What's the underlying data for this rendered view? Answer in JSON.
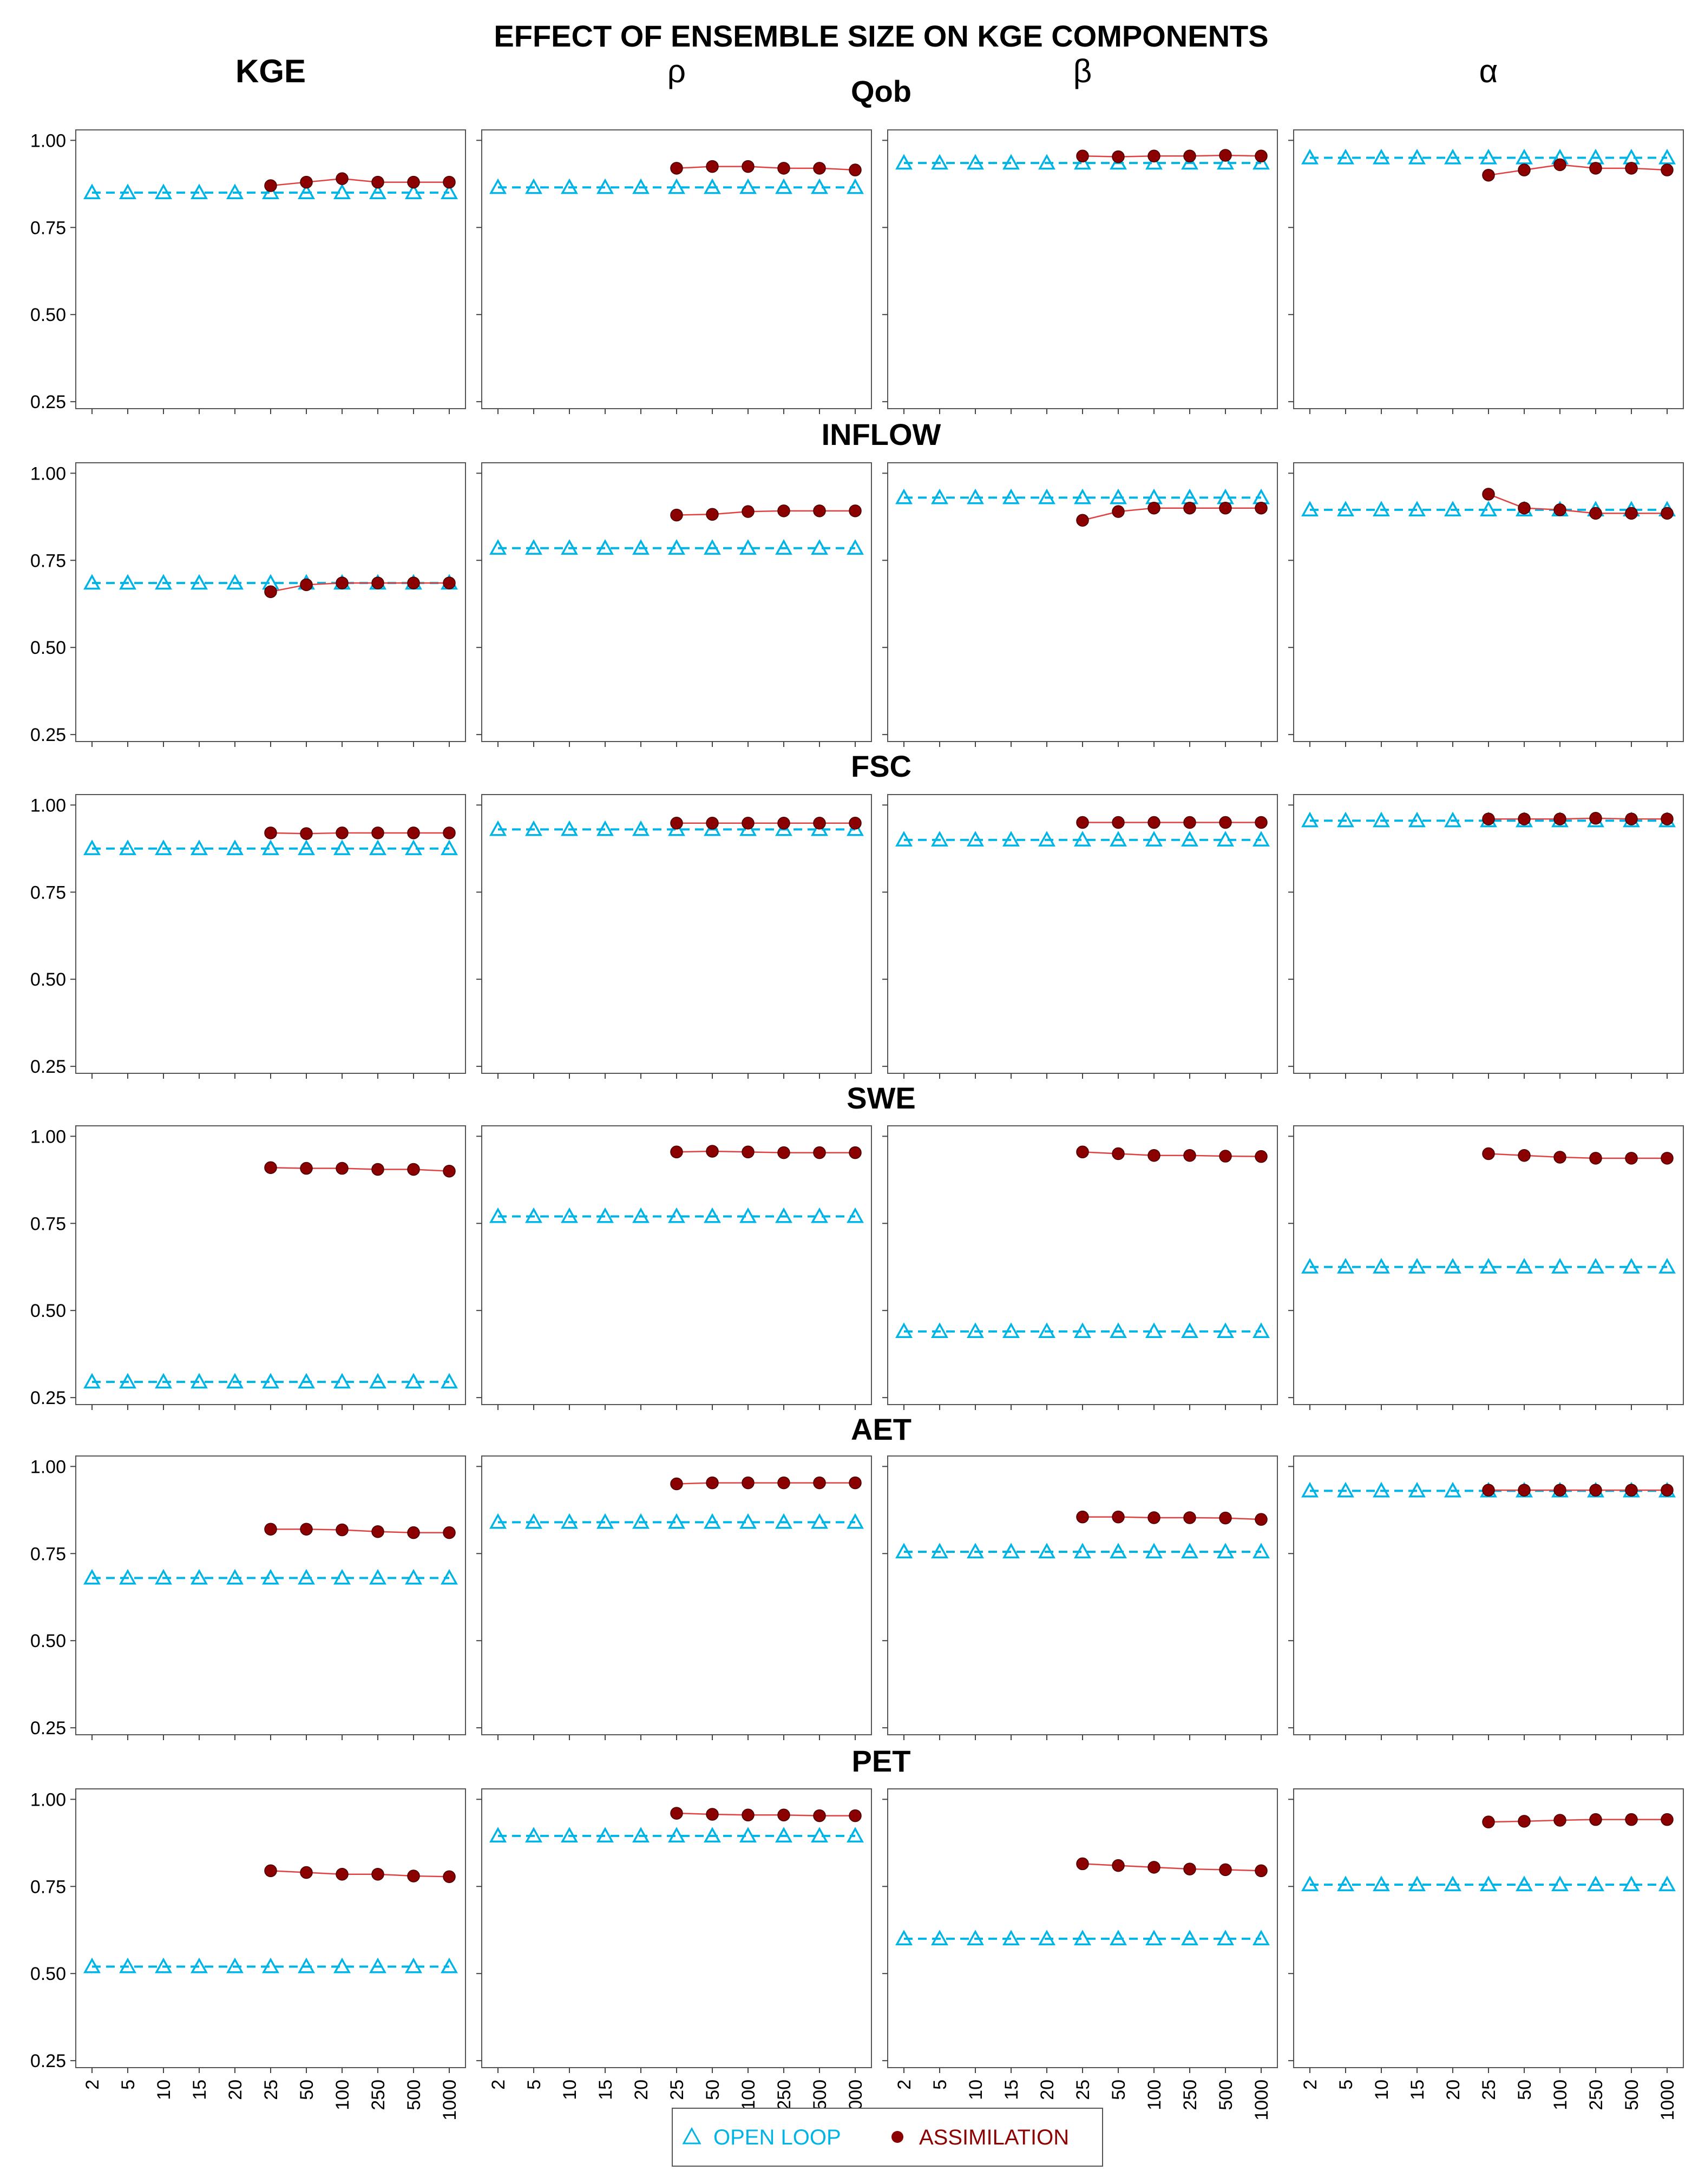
{
  "chart_data": {
    "type": "line",
    "title": "EFFECT OF ENSEMBLE SIZE ON KGE COMPONENTS",
    "columns": [
      "KGE",
      "ρ",
      "β",
      "α"
    ],
    "rows": [
      "Qob",
      "INFLOW",
      "FSC",
      "SWE",
      "AET",
      "PET"
    ],
    "x_categories": [
      "2",
      "5",
      "10",
      "15",
      "20",
      "25",
      "50",
      "100",
      "250",
      "500",
      "1000"
    ],
    "assimilation_start_index": 5,
    "y_ticks": [
      1.0,
      0.75,
      0.5,
      0.25
    ],
    "y_tick_labels": [
      "1.00",
      "0.75",
      "0.50",
      "0.25"
    ],
    "ylim": [
      0.23,
      1.03
    ],
    "grid": false,
    "colors": {
      "open_loop": "#00b4e6",
      "assimilation": "#8b0000",
      "assimilation_line": "#e04040"
    },
    "legend": {
      "position": "bottom-center",
      "entries": [
        {
          "label": "OPEN LOOP",
          "marker": "triangle-open",
          "color": "#00b4e6"
        },
        {
          "label": "ASSIMILATION",
          "marker": "circle-filled",
          "color": "#8b0000"
        }
      ]
    },
    "panels": [
      {
        "row": "Qob",
        "column": "KGE",
        "open_loop": 0.85,
        "assimilation": [
          0.87,
          0.88,
          0.89,
          0.88,
          0.88,
          0.88
        ]
      },
      {
        "row": "Qob",
        "column": "ρ",
        "open_loop": 0.865,
        "assimilation": [
          0.92,
          0.925,
          0.925,
          0.92,
          0.92,
          0.915
        ]
      },
      {
        "row": "Qob",
        "column": "β",
        "open_loop": 0.935,
        "assimilation": [
          0.955,
          0.953,
          0.955,
          0.955,
          0.957,
          0.955
        ]
      },
      {
        "row": "Qob",
        "column": "α",
        "open_loop": 0.95,
        "assimilation": [
          0.9,
          0.915,
          0.93,
          0.92,
          0.92,
          0.915
        ]
      },
      {
        "row": "INFLOW",
        "column": "KGE",
        "open_loop": 0.685,
        "assimilation": [
          0.66,
          0.68,
          0.685,
          0.685,
          0.685,
          0.685
        ]
      },
      {
        "row": "INFLOW",
        "column": "ρ",
        "open_loop": 0.785,
        "assimilation": [
          0.88,
          0.882,
          0.89,
          0.892,
          0.892,
          0.892
        ]
      },
      {
        "row": "INFLOW",
        "column": "β",
        "open_loop": 0.93,
        "assimilation": [
          0.865,
          0.89,
          0.9,
          0.9,
          0.9,
          0.9
        ]
      },
      {
        "row": "INFLOW",
        "column": "α",
        "open_loop": 0.895,
        "assimilation": [
          0.94,
          0.9,
          0.895,
          0.885,
          0.885,
          0.885
        ]
      },
      {
        "row": "FSC",
        "column": "KGE",
        "open_loop": 0.875,
        "assimilation": [
          0.92,
          0.918,
          0.92,
          0.92,
          0.92,
          0.92
        ]
      },
      {
        "row": "FSC",
        "column": "ρ",
        "open_loop": 0.93,
        "assimilation": [
          0.948,
          0.948,
          0.948,
          0.948,
          0.948,
          0.948
        ]
      },
      {
        "row": "FSC",
        "column": "β",
        "open_loop": 0.9,
        "assimilation": [
          0.95,
          0.95,
          0.95,
          0.95,
          0.95,
          0.95
        ]
      },
      {
        "row": "FSC",
        "column": "α",
        "open_loop": 0.955,
        "assimilation": [
          0.96,
          0.96,
          0.96,
          0.962,
          0.96,
          0.96
        ]
      },
      {
        "row": "SWE",
        "column": "KGE",
        "open_loop": 0.295,
        "assimilation": [
          0.91,
          0.908,
          0.908,
          0.905,
          0.905,
          0.9
        ]
      },
      {
        "row": "SWE",
        "column": "ρ",
        "open_loop": 0.77,
        "assimilation": [
          0.955,
          0.957,
          0.955,
          0.953,
          0.953,
          0.953
        ]
      },
      {
        "row": "SWE",
        "column": "β",
        "open_loop": 0.44,
        "assimilation": [
          0.955,
          0.95,
          0.945,
          0.945,
          0.943,
          0.942
        ]
      },
      {
        "row": "SWE",
        "column": "α",
        "open_loop": 0.625,
        "assimilation": [
          0.95,
          0.945,
          0.94,
          0.937,
          0.937,
          0.937
        ]
      },
      {
        "row": "AET",
        "column": "KGE",
        "open_loop": 0.68,
        "assimilation": [
          0.82,
          0.82,
          0.818,
          0.813,
          0.81,
          0.81
        ]
      },
      {
        "row": "AET",
        "column": "ρ",
        "open_loop": 0.84,
        "assimilation": [
          0.95,
          0.953,
          0.953,
          0.953,
          0.953,
          0.953
        ]
      },
      {
        "row": "AET",
        "column": "β",
        "open_loop": 0.755,
        "assimilation": [
          0.855,
          0.855,
          0.853,
          0.853,
          0.852,
          0.848
        ]
      },
      {
        "row": "AET",
        "column": "α",
        "open_loop": 0.93,
        "assimilation": [
          0.932,
          0.932,
          0.932,
          0.932,
          0.932,
          0.932
        ]
      },
      {
        "row": "PET",
        "column": "KGE",
        "open_loop": 0.52,
        "assimilation": [
          0.795,
          0.79,
          0.785,
          0.785,
          0.78,
          0.778
        ]
      },
      {
        "row": "PET",
        "column": "ρ",
        "open_loop": 0.895,
        "assimilation": [
          0.96,
          0.957,
          0.955,
          0.955,
          0.953,
          0.953
        ]
      },
      {
        "row": "PET",
        "column": "β",
        "open_loop": 0.6,
        "assimilation": [
          0.815,
          0.81,
          0.805,
          0.8,
          0.798,
          0.795
        ]
      },
      {
        "row": "PET",
        "column": "α",
        "open_loop": 0.755,
        "assimilation": [
          0.935,
          0.937,
          0.94,
          0.942,
          0.942,
          0.942
        ]
      }
    ]
  }
}
